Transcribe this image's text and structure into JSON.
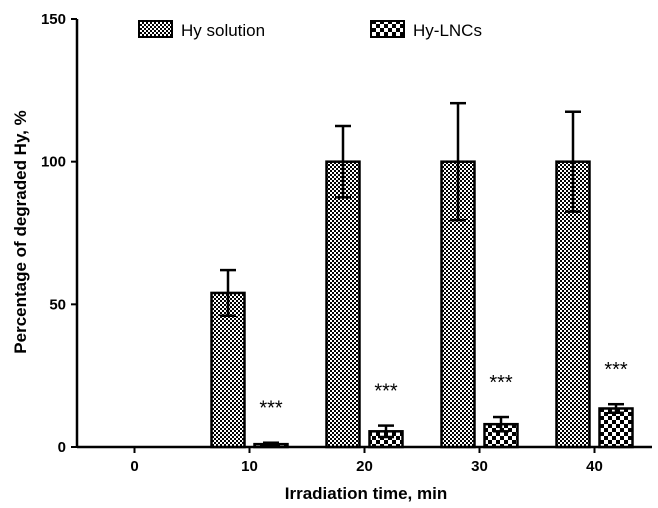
{
  "chart_data": {
    "type": "bar",
    "xlabel": "Irradiation time, min",
    "ylabel": "Percentage of degraded Hy, %",
    "categories": [
      "0",
      "10",
      "20",
      "30",
      "40"
    ],
    "ylim": [
      0,
      150
    ],
    "yticks": [
      "0",
      "50",
      "100",
      "150"
    ],
    "legend_position": "top",
    "series": [
      {
        "name": "Hy solution",
        "pattern": "fine-checker",
        "values": [
          0,
          54,
          100,
          100,
          100
        ],
        "errors": [
          0,
          8,
          12.5,
          20.5,
          17.5
        ]
      },
      {
        "name": "Hy-LNCs",
        "pattern": "coarse-checker",
        "values": [
          0,
          1,
          5.5,
          8,
          13.5
        ],
        "errors": [
          0,
          0.5,
          2,
          2.5,
          1.5
        ]
      }
    ],
    "annotations": [
      "",
      "***",
      "***",
      "***",
      "***"
    ],
    "colors": {
      "bar_edge": "#000000",
      "pattern_dark": "#000000",
      "pattern_light": "#ffffff"
    }
  }
}
